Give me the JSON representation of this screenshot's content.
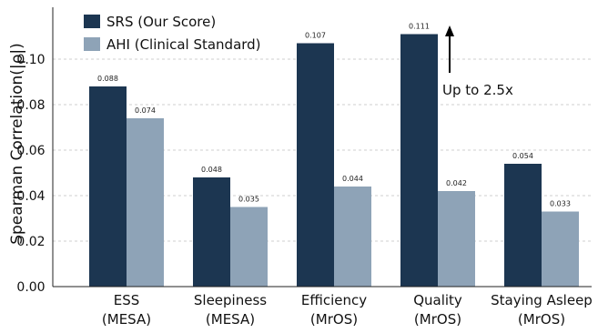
{
  "chart_data": {
    "type": "bar",
    "categories": [
      [
        "ESS",
        "(MESA)"
      ],
      [
        "Sleepiness",
        "(MESA)"
      ],
      [
        "Efficiency",
        "(MrOS)"
      ],
      [
        "Quality",
        "(MrOS)"
      ],
      [
        "Staying Asleep",
        "(MrOS)"
      ]
    ],
    "series": [
      {
        "name": "SRS (Our Score)",
        "color": "#1c3651",
        "values": [
          0.088,
          0.048,
          0.107,
          0.111,
          0.054
        ]
      },
      {
        "name": "AHI (Clinical Standard)",
        "color": "#8ea3b7",
        "values": [
          0.074,
          0.035,
          0.044,
          0.042,
          0.033
        ]
      }
    ],
    "data_labels": [
      [
        "0.088",
        "0.048",
        "0.107",
        "0.111",
        "0.054"
      ],
      [
        "0.074",
        "0.035",
        "0.044",
        "0.042",
        "0.033"
      ]
    ],
    "ylabel": "Spearman Correlation(|ρ|)",
    "ylim": [
      0,
      0.12
    ],
    "yticks": [
      0.0,
      0.02,
      0.04,
      0.06,
      0.08,
      0.1
    ],
    "ytick_labels": [
      "0.00",
      "0.02",
      "0.04",
      "0.06",
      "0.08",
      "0.10"
    ],
    "grid": true,
    "legend_position": "top-left",
    "annotation": {
      "text": "Up to 2.5x",
      "arrow": "up",
      "category_index": 3
    }
  }
}
